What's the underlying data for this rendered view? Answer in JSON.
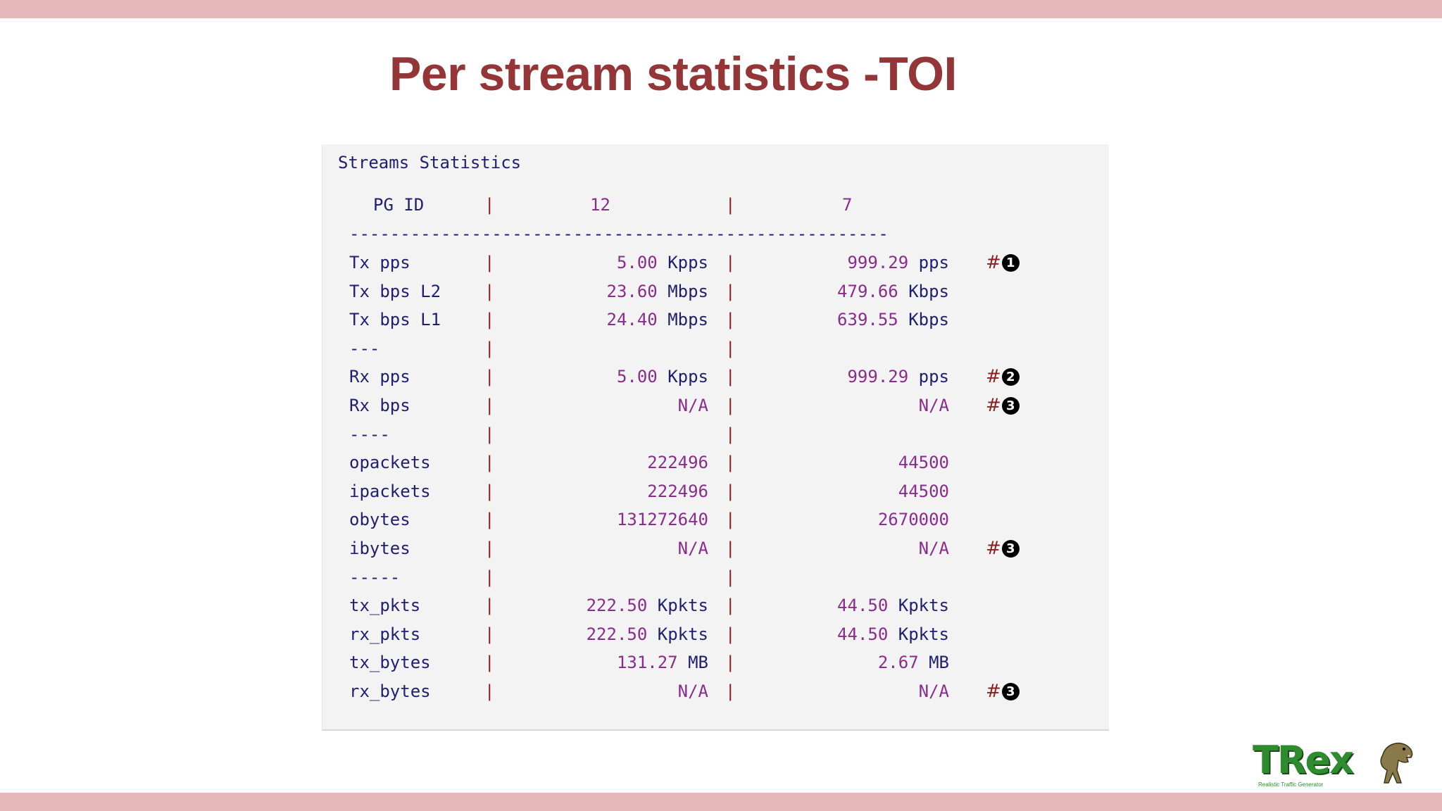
{
  "slide": {
    "title": "Per stream statistics -TOI"
  },
  "panel": {
    "heading": "Streams Statistics",
    "header": {
      "label": "PG ID",
      "col1": "12",
      "col2": "7"
    },
    "separator": "-----------------------------------------------------",
    "rows": [
      {
        "label": "Tx pps",
        "v1": "5.00",
        "u1": "Kpps",
        "v2": "999.29",
        "u2": "pps",
        "note": "1"
      },
      {
        "label": "Tx bps L2",
        "v1": "23.60",
        "u1": "Mbps",
        "v2": "479.66",
        "u2": "Kbps",
        "note": ""
      },
      {
        "label": "Tx bps L1",
        "v1": "24.40",
        "u1": "Mbps",
        "v2": "639.55",
        "u2": "Kbps",
        "note": ""
      },
      {
        "label": "---",
        "v1": "",
        "u1": "",
        "v2": "",
        "u2": "",
        "note": ""
      },
      {
        "label": "Rx pps",
        "v1": "5.00",
        "u1": "Kpps",
        "v2": "999.29",
        "u2": "pps",
        "note": "2"
      },
      {
        "label": "Rx bps",
        "v1": "N/A",
        "u1": "",
        "v2": "N/A",
        "u2": "",
        "note": "3"
      },
      {
        "label": "----",
        "v1": "",
        "u1": "",
        "v2": "",
        "u2": "",
        "note": ""
      },
      {
        "label": "opackets",
        "v1": "222496",
        "u1": "",
        "v2": "44500",
        "u2": "",
        "note": ""
      },
      {
        "label": "ipackets",
        "v1": "222496",
        "u1": "",
        "v2": "44500",
        "u2": "",
        "note": ""
      },
      {
        "label": "obytes",
        "v1": "131272640",
        "u1": "",
        "v2": "2670000",
        "u2": "",
        "note": ""
      },
      {
        "label": "ibytes",
        "v1": "N/A",
        "u1": "",
        "v2": "N/A",
        "u2": "",
        "note": "3"
      },
      {
        "label": "-----",
        "v1": "",
        "u1": "",
        "v2": "",
        "u2": "",
        "note": ""
      },
      {
        "label": "tx_pkts",
        "v1": "222.50",
        "u1": "Kpkts",
        "v2": "44.50",
        "u2": "Kpkts",
        "note": ""
      },
      {
        "label": "rx_pkts",
        "v1": "222.50",
        "u1": "Kpkts",
        "v2": "44.50",
        "u2": "Kpkts",
        "note": ""
      },
      {
        "label": "tx_bytes",
        "v1": "131.27",
        "u1": "MB",
        "v2": "2.67",
        "u2": "MB",
        "note": ""
      },
      {
        "label": "rx_bytes",
        "v1": "N/A",
        "u1": "",
        "v2": "N/A",
        "u2": "",
        "note": "3"
      }
    ],
    "note_symbols": {
      "1": "1",
      "2": "2",
      "3": "3"
    }
  },
  "logo": {
    "text": "TRex",
    "tagline": "Realistic Traffic Generator"
  },
  "colors": {
    "bar": "#e6b8b9",
    "title": "#943537",
    "label": "#1f1f70",
    "value": "#8a2c8c",
    "pipe": "#8a2020",
    "logo": "#2e8b2e"
  }
}
